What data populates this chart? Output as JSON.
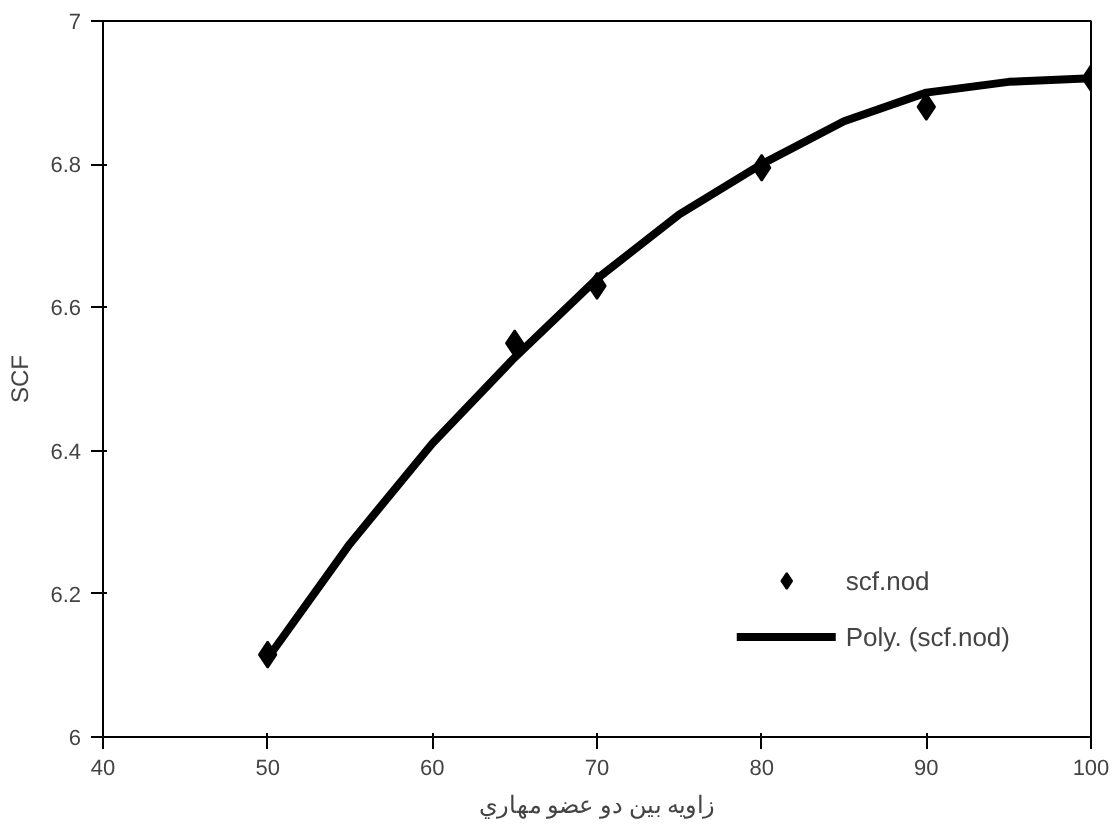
{
  "chart_data": {
    "type": "scatter",
    "xlabel": "زاويه بين دو عضو مهاري",
    "ylabel": "SCF",
    "xlim": [
      40,
      100
    ],
    "xticks": [
      40,
      50,
      60,
      70,
      80,
      90,
      100
    ],
    "ylim": [
      6,
      7
    ],
    "yticks": [
      6,
      {
        "value": 6.2,
        "label": "6.2"
      },
      {
        "value": 6.4,
        "label": "6.4"
      },
      {
        "value": 6.6,
        "label": "6.6"
      },
      {
        "value": 6.8,
        "label": "6.8"
      },
      7
    ],
    "grid": false,
    "legend": "bottom right",
    "series": [
      {
        "name": "scf.nod",
        "marker": "diamond",
        "color": "#000000",
        "x": [
          50,
          65,
          70,
          80,
          90,
          100
        ],
        "values": [
          6.115,
          6.55,
          6.63,
          6.795,
          6.88,
          6.92
        ]
      },
      {
        "name": "Poly. (scf.nod)",
        "type": "line",
        "line_style": "solid",
        "color": "#000000",
        "x": [
          50,
          55,
          60,
          65,
          70,
          75,
          80,
          85,
          90,
          95,
          100
        ],
        "values": [
          6.11,
          6.27,
          6.41,
          6.53,
          6.64,
          6.73,
          6.8,
          6.86,
          6.9,
          6.915,
          6.92
        ]
      }
    ]
  }
}
